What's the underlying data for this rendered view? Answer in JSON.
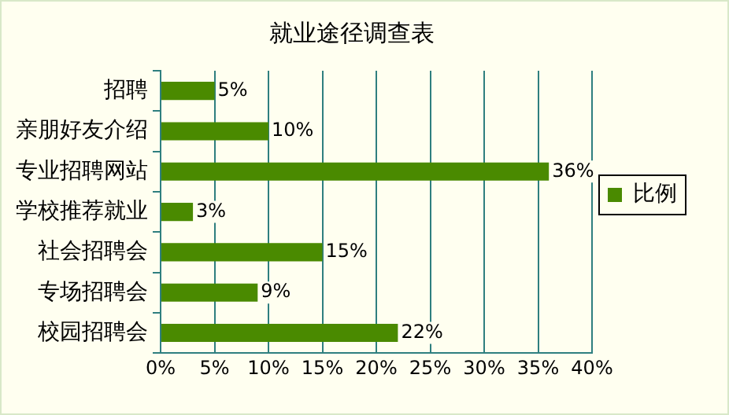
{
  "chart_data": {
    "type": "bar",
    "orientation": "horizontal",
    "title": "就业途径调查表",
    "categories": [
      "招聘",
      "亲朋好友介绍",
      "专业招聘网站",
      "学校推荐就业",
      "社会招聘会",
      "专场招聘会",
      "校园招聘会"
    ],
    "series": [
      {
        "name": "比例",
        "color": "#4a8a00",
        "values": [
          5,
          10,
          36,
          3,
          15,
          9,
          22
        ],
        "value_labels": [
          "5%",
          "10%",
          "36%",
          "3%",
          "15%",
          "9%",
          "22%"
        ]
      }
    ],
    "xlim": [
      0,
      40
    ],
    "xticks": [
      {
        "value": 0,
        "label": "0%"
      },
      {
        "value": 5,
        "label": "5%"
      },
      {
        "value": 10,
        "label": "10%"
      },
      {
        "value": 15,
        "label": "15%"
      },
      {
        "value": 20,
        "label": "20%"
      },
      {
        "value": 25,
        "label": "25%"
      },
      {
        "value": 30,
        "label": "30%"
      },
      {
        "value": 35,
        "label": "35%"
      },
      {
        "value": 40,
        "label": "40%"
      }
    ],
    "grid": "x",
    "legend": "right"
  }
}
